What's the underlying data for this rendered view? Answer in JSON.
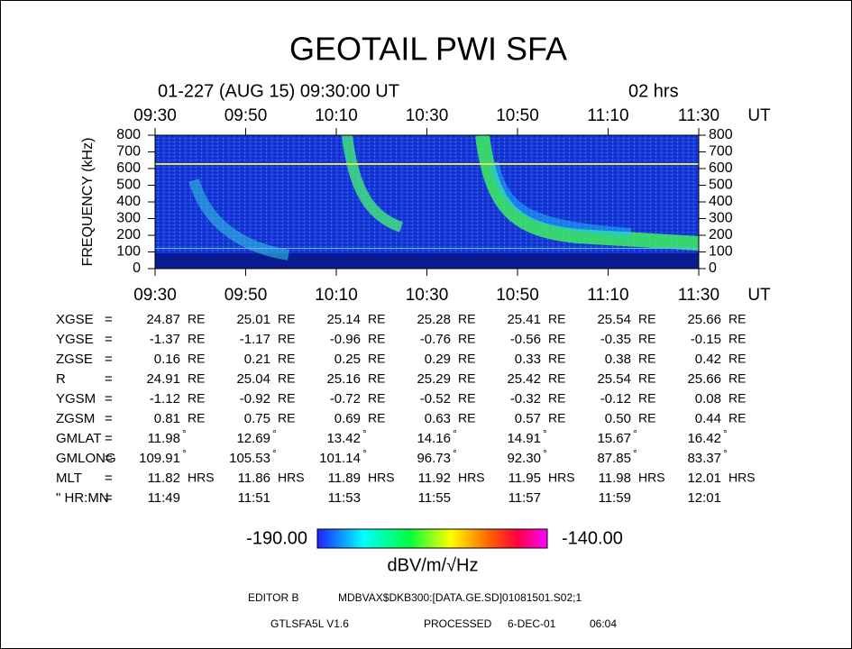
{
  "chart_data": {
    "type": "spectrogram",
    "title": "GEOTAIL PWI SFA",
    "subtitle": "01-227 (AUG 15) 09:30:00 UT",
    "duration": "02 hrs",
    "xticks": [
      "09:30",
      "09:50",
      "10:10",
      "10:30",
      "10:50",
      "11:10",
      "11:30"
    ],
    "xunit": "UT",
    "ylabel": "FREQUENCY (kHz)",
    "ylim": [
      0,
      800
    ],
    "yticks": [
      0,
      100,
      200,
      300,
      400,
      500,
      600,
      700,
      800
    ],
    "colorbar": {
      "min_label": "-190.00",
      "max_label": "-140.00",
      "unit": "dBV/m/√Hz"
    }
  },
  "ephemeris": {
    "separator": "=",
    "rows": [
      {
        "label": "XGSE",
        "unit": "RE",
        "values": [
          "24.87",
          "25.01",
          "25.14",
          "25.28",
          "25.41",
          "25.54",
          "25.66"
        ]
      },
      {
        "label": "YGSE",
        "unit": "RE",
        "values": [
          "-1.37",
          "-1.17",
          "-0.96",
          "-0.76",
          "-0.56",
          "-0.35",
          "-0.15"
        ]
      },
      {
        "label": "ZGSE",
        "unit": "RE",
        "values": [
          "0.16",
          "0.21",
          "0.25",
          "0.29",
          "0.33",
          "0.38",
          "0.42"
        ]
      },
      {
        "label": "R",
        "unit": "RE",
        "values": [
          "24.91",
          "25.04",
          "25.16",
          "25.29",
          "25.42",
          "25.54",
          "25.66"
        ]
      },
      {
        "label": "YGSM",
        "unit": "RE",
        "values": [
          "-1.12",
          "-0.92",
          "-0.72",
          "-0.52",
          "-0.32",
          "-0.12",
          "0.08"
        ]
      },
      {
        "label": "ZGSM",
        "unit": "RE",
        "values": [
          "0.81",
          "0.75",
          "0.69",
          "0.63",
          "0.57",
          "0.50",
          "0.44"
        ]
      },
      {
        "label": "GMLAT",
        "unit": "°",
        "values": [
          "11.98",
          "12.69",
          "13.42",
          "14.16",
          "14.91",
          "15.67",
          "16.42"
        ]
      },
      {
        "label": "GMLONG",
        "unit": "°",
        "values": [
          "109.91",
          "105.53",
          "101.14",
          "96.73",
          "92.30",
          "87.85",
          "83.37"
        ]
      },
      {
        "label": "MLT",
        "unit": "HRS",
        "values": [
          "11.82",
          "11.86",
          "11.89",
          "11.92",
          "11.95",
          "11.98",
          "12.01"
        ]
      },
      {
        "label": "\" HR:MN",
        "values": [
          "11:49",
          "11:51",
          "11:53",
          "11:55",
          "11:57",
          "11:59",
          "12:01"
        ]
      }
    ]
  },
  "footer": {
    "editor": "EDITOR B",
    "file": "MDBVAX$DKB300:[DATA.GE.SD]01081501.S02;1",
    "program": "GTLSFA5L V1.6",
    "processed_label": "PROCESSED",
    "processed_date": "6-DEC-01",
    "processed_time": "06:04"
  }
}
